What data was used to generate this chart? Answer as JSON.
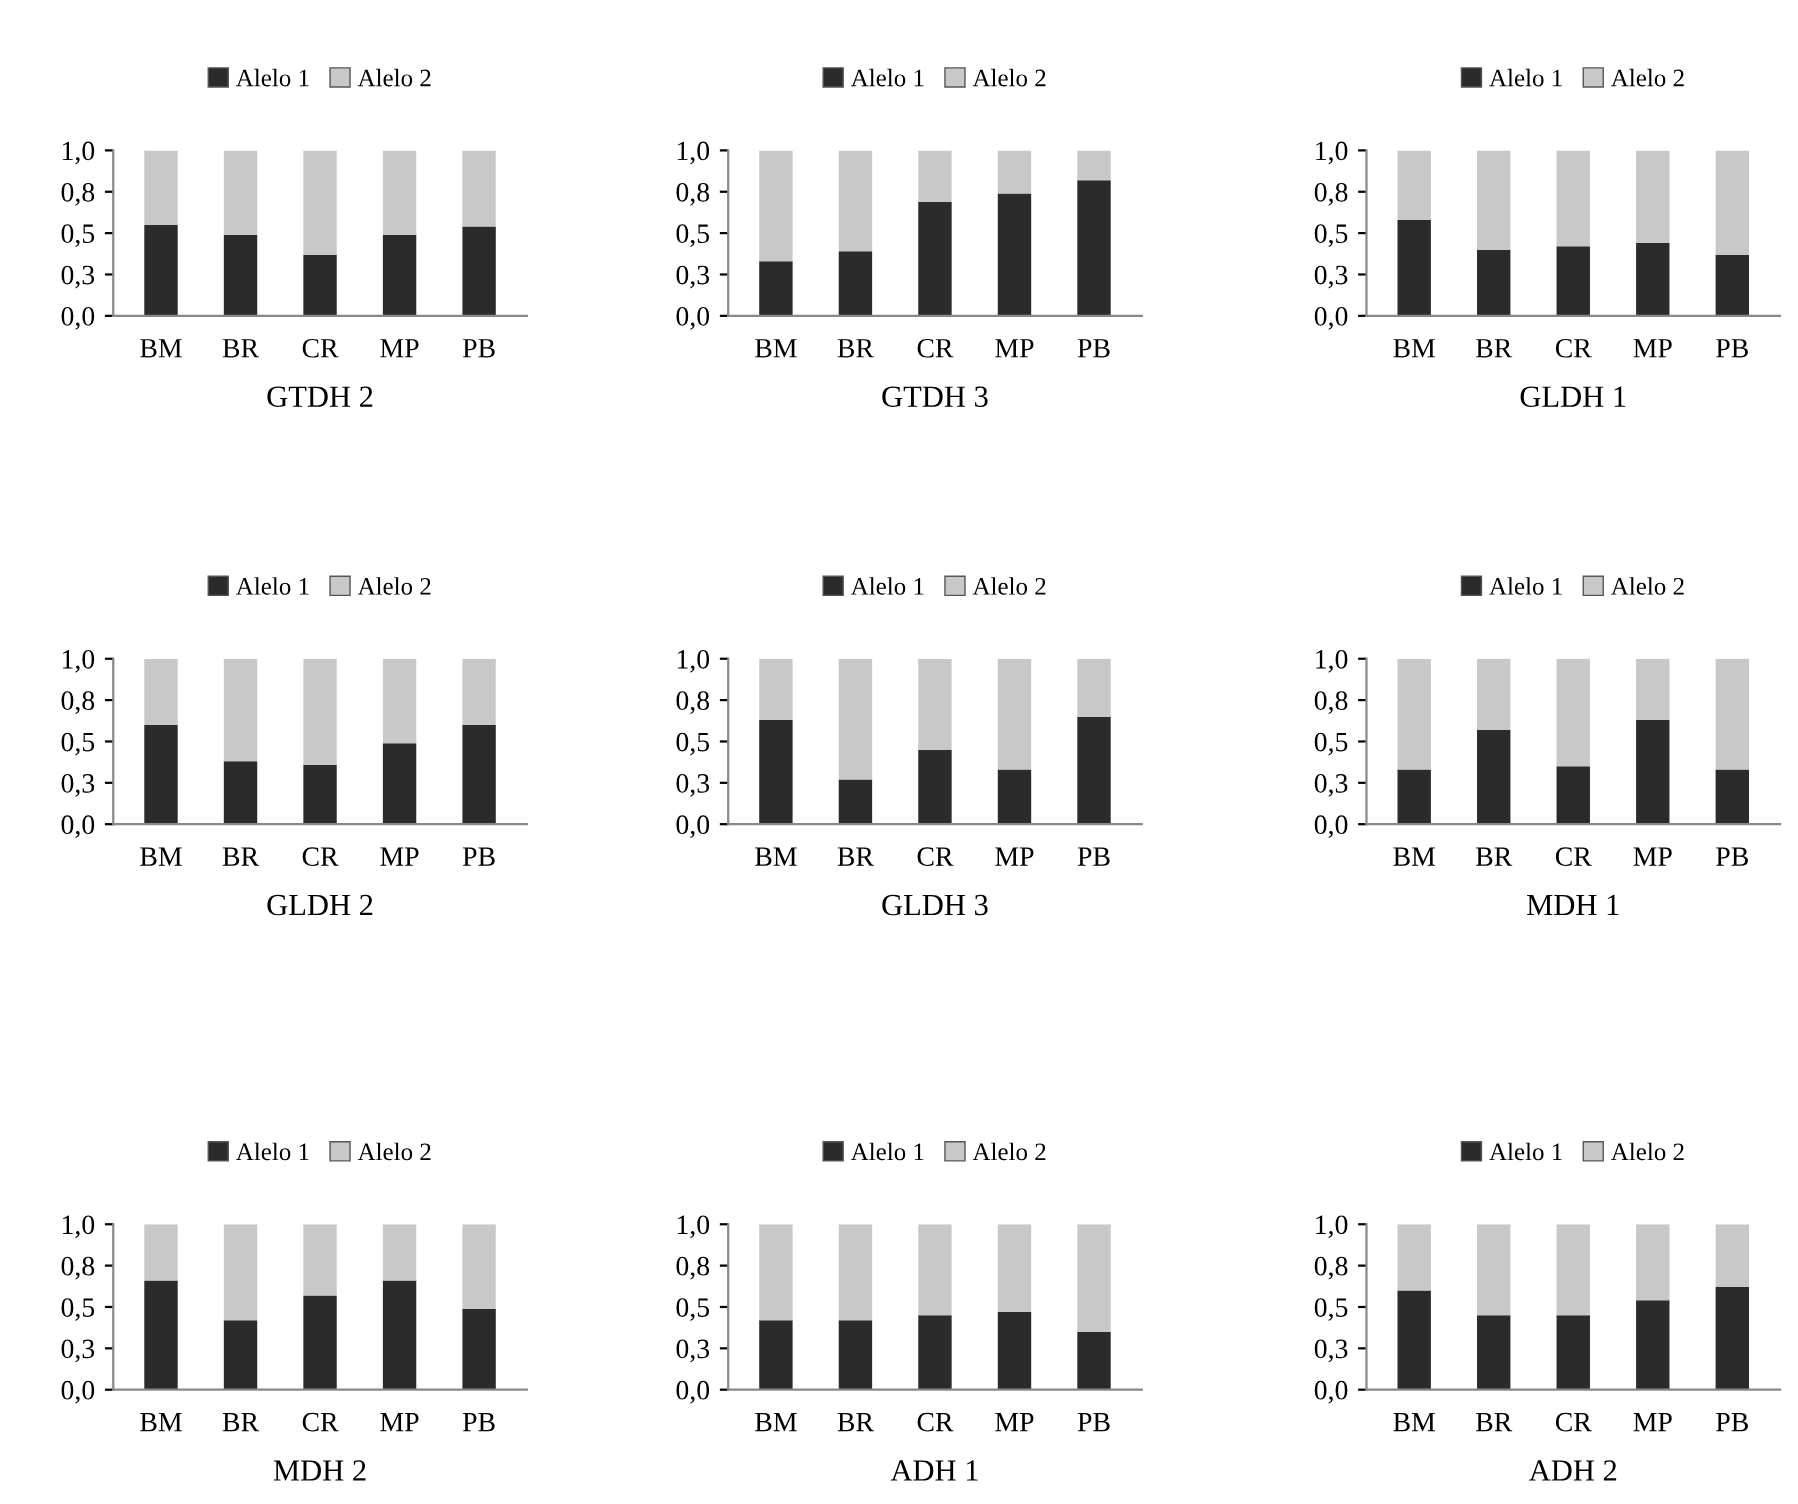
{
  "chart_data": [
    {
      "type": "bar",
      "stacked": true,
      "xlabel": "GTDH 2",
      "legend": "top",
      "categories": [
        "BM",
        "BR",
        "CR",
        "MP",
        "PB"
      ],
      "ylim": [
        0,
        1
      ],
      "yticks": [
        {
          "value": 0,
          "label": "0,0"
        },
        {
          "value": 0.25,
          "label": "0,3"
        },
        {
          "value": 0.5,
          "label": "0,5"
        },
        {
          "value": 0.75,
          "label": "0,8"
        },
        {
          "value": 1,
          "label": "1,0"
        }
      ],
      "series": [
        {
          "name": "Alelo 1",
          "color": "#2b2b2b",
          "values": [
            0.55,
            0.49,
            0.37,
            0.49,
            0.54
          ]
        },
        {
          "name": "Alelo 2",
          "color": "#c8c8c8",
          "values": [
            0.45,
            0.51,
            0.63,
            0.51,
            0.46
          ]
        }
      ]
    },
    {
      "type": "bar",
      "stacked": true,
      "xlabel": "GTDH 3",
      "legend": "top",
      "categories": [
        "BM",
        "BR",
        "CR",
        "MP",
        "PB"
      ],
      "ylim": [
        0,
        1
      ],
      "yticks": [
        {
          "value": 0,
          "label": "0,0"
        },
        {
          "value": 0.25,
          "label": "0,3"
        },
        {
          "value": 0.5,
          "label": "0,5"
        },
        {
          "value": 0.75,
          "label": "0,8"
        },
        {
          "value": 1,
          "label": "1,0"
        }
      ],
      "series": [
        {
          "name": "Alelo 1",
          "color": "#2b2b2b",
          "values": [
            0.33,
            0.39,
            0.69,
            0.74,
            0.82
          ]
        },
        {
          "name": "Alelo 2",
          "color": "#c8c8c8",
          "values": [
            0.67,
            0.61,
            0.31,
            0.26,
            0.18
          ]
        }
      ]
    },
    {
      "type": "bar",
      "stacked": true,
      "xlabel": "GLDH 1",
      "legend": "top",
      "categories": [
        "BM",
        "BR",
        "CR",
        "MP",
        "PB"
      ],
      "ylim": [
        0,
        1
      ],
      "yticks": [
        {
          "value": 0,
          "label": "0,0"
        },
        {
          "value": 0.25,
          "label": "0,3"
        },
        {
          "value": 0.5,
          "label": "0,5"
        },
        {
          "value": 0.75,
          "label": "0,8"
        },
        {
          "value": 1,
          "label": "1,0"
        }
      ],
      "series": [
        {
          "name": "Alelo 1",
          "color": "#2b2b2b",
          "values": [
            0.58,
            0.4,
            0.42,
            0.44,
            0.37
          ]
        },
        {
          "name": "Alelo 2",
          "color": "#c8c8c8",
          "values": [
            0.42,
            0.6,
            0.58,
            0.56,
            0.63
          ]
        }
      ]
    },
    {
      "type": "bar",
      "stacked": true,
      "xlabel": "GLDH 2",
      "legend": "top",
      "categories": [
        "BM",
        "BR",
        "CR",
        "MP",
        "PB"
      ],
      "ylim": [
        0,
        1
      ],
      "yticks": [
        {
          "value": 0,
          "label": "0,0"
        },
        {
          "value": 0.25,
          "label": "0,3"
        },
        {
          "value": 0.5,
          "label": "0,5"
        },
        {
          "value": 0.75,
          "label": "0,8"
        },
        {
          "value": 1,
          "label": "1,0"
        }
      ],
      "series": [
        {
          "name": "Alelo 1",
          "color": "#2b2b2b",
          "values": [
            0.6,
            0.38,
            0.36,
            0.49,
            0.6
          ]
        },
        {
          "name": "Alelo 2",
          "color": "#c8c8c8",
          "values": [
            0.4,
            0.62,
            0.64,
            0.51,
            0.4
          ]
        }
      ]
    },
    {
      "type": "bar",
      "stacked": true,
      "xlabel": "GLDH 3",
      "legend": "top",
      "categories": [
        "BM",
        "BR",
        "CR",
        "MP",
        "PB"
      ],
      "ylim": [
        0,
        1
      ],
      "yticks": [
        {
          "value": 0,
          "label": "0,0"
        },
        {
          "value": 0.25,
          "label": "0,3"
        },
        {
          "value": 0.5,
          "label": "0,5"
        },
        {
          "value": 0.75,
          "label": "0,8"
        },
        {
          "value": 1,
          "label": "1,0"
        }
      ],
      "series": [
        {
          "name": "Alelo 1",
          "color": "#2b2b2b",
          "values": [
            0.63,
            0.27,
            0.45,
            0.33,
            0.65
          ]
        },
        {
          "name": "Alelo 2",
          "color": "#c8c8c8",
          "values": [
            0.37,
            0.73,
            0.55,
            0.67,
            0.35
          ]
        }
      ]
    },
    {
      "type": "bar",
      "stacked": true,
      "xlabel": "MDH 1",
      "legend": "top",
      "categories": [
        "BM",
        "BR",
        "CR",
        "MP",
        "PB"
      ],
      "ylim": [
        0,
        1
      ],
      "yticks": [
        {
          "value": 0,
          "label": "0,0"
        },
        {
          "value": 0.25,
          "label": "0,3"
        },
        {
          "value": 0.5,
          "label": "0,5"
        },
        {
          "value": 0.75,
          "label": "0,8"
        },
        {
          "value": 1,
          "label": "1,0"
        }
      ],
      "series": [
        {
          "name": "Alelo 1",
          "color": "#2b2b2b",
          "values": [
            0.33,
            0.57,
            0.35,
            0.63,
            0.33
          ]
        },
        {
          "name": "Alelo 2",
          "color": "#c8c8c8",
          "values": [
            0.67,
            0.43,
            0.65,
            0.37,
            0.67
          ]
        }
      ]
    },
    {
      "type": "bar",
      "stacked": true,
      "xlabel": "MDH 2",
      "legend": "top",
      "categories": [
        "BM",
        "BR",
        "CR",
        "MP",
        "PB"
      ],
      "ylim": [
        0,
        1
      ],
      "yticks": [
        {
          "value": 0,
          "label": "0,0"
        },
        {
          "value": 0.25,
          "label": "0,3"
        },
        {
          "value": 0.5,
          "label": "0,5"
        },
        {
          "value": 0.75,
          "label": "0,8"
        },
        {
          "value": 1,
          "label": "1,0"
        }
      ],
      "series": [
        {
          "name": "Alelo 1",
          "color": "#2b2b2b",
          "values": [
            0.66,
            0.42,
            0.57,
            0.66,
            0.49
          ]
        },
        {
          "name": "Alelo 2",
          "color": "#c8c8c8",
          "values": [
            0.34,
            0.58,
            0.43,
            0.34,
            0.51
          ]
        }
      ]
    },
    {
      "type": "bar",
      "stacked": true,
      "xlabel": "ADH 1",
      "legend": "top",
      "categories": [
        "BM",
        "BR",
        "CR",
        "MP",
        "PB"
      ],
      "ylim": [
        0,
        1
      ],
      "yticks": [
        {
          "value": 0,
          "label": "0,0"
        },
        {
          "value": 0.25,
          "label": "0,3"
        },
        {
          "value": 0.5,
          "label": "0,5"
        },
        {
          "value": 0.75,
          "label": "0,8"
        },
        {
          "value": 1,
          "label": "1,0"
        }
      ],
      "series": [
        {
          "name": "Alelo 1",
          "color": "#2b2b2b",
          "values": [
            0.42,
            0.42,
            0.45,
            0.47,
            0.35
          ]
        },
        {
          "name": "Alelo 2",
          "color": "#c8c8c8",
          "values": [
            0.58,
            0.58,
            0.55,
            0.53,
            0.65
          ]
        }
      ]
    },
    {
      "type": "bar",
      "stacked": true,
      "xlabel": "ADH 2",
      "legend": "top",
      "categories": [
        "BM",
        "BR",
        "CR",
        "MP",
        "PB"
      ],
      "ylim": [
        0,
        1
      ],
      "yticks": [
        {
          "value": 0,
          "label": "0,0"
        },
        {
          "value": 0.25,
          "label": "0,3"
        },
        {
          "value": 0.5,
          "label": "0,5"
        },
        {
          "value": 0.75,
          "label": "0,8"
        },
        {
          "value": 1,
          "label": "1,0"
        }
      ],
      "series": [
        {
          "name": "Alelo 1",
          "color": "#2b2b2b",
          "values": [
            0.6,
            0.45,
            0.45,
            0.54,
            0.62
          ]
        },
        {
          "name": "Alelo 2",
          "color": "#c8c8c8",
          "values": [
            0.4,
            0.55,
            0.55,
            0.46,
            0.38
          ]
        }
      ]
    }
  ]
}
